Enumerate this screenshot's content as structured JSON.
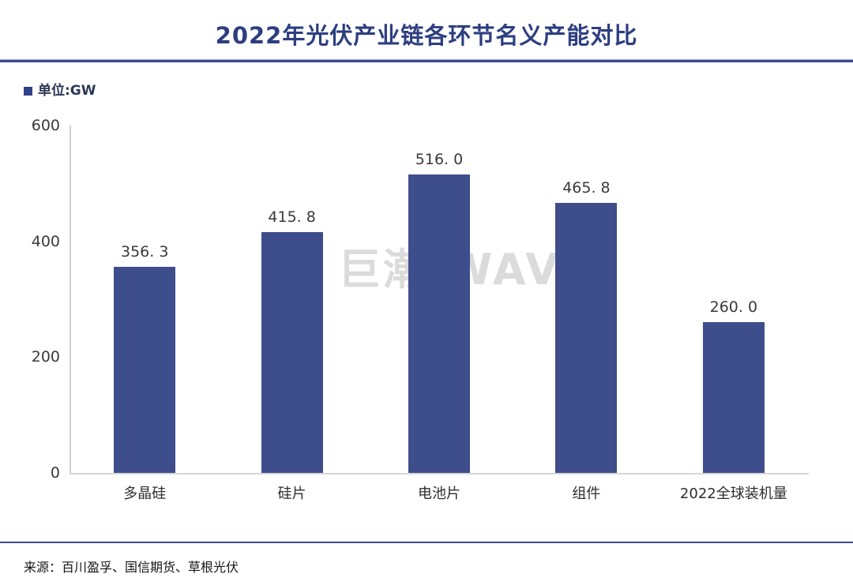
{
  "header": {
    "title": "2022年光伏产业链各环节名义产能对比"
  },
  "legend": {
    "unit_label": "单位:GW"
  },
  "watermark": {
    "text": "巨潮 WAVE"
  },
  "footer": {
    "source": "来源：百川盈孚、国信期货、草根光伏"
  },
  "colors": {
    "bar": "#3e4d8c",
    "title": "#2d3e80",
    "divider": "#3f4c96",
    "watermark": "#dbdbdb",
    "axis_line": "#d4d4d4",
    "tick_text": "#3a3a3a"
  },
  "chart_data": {
    "type": "bar",
    "title": "2022年光伏产业链各环节名义产能对比",
    "unit": "GW",
    "categories": [
      "多晶硅",
      "硅片",
      "电池片",
      "组件",
      "2022全球装机量"
    ],
    "values": [
      356.3,
      415.8,
      516.0,
      465.8,
      260.0
    ],
    "value_labels": [
      "356. 3",
      "415. 8",
      "516. 0",
      "465. 8",
      "260. 0"
    ],
    "series_name": "名义产能",
    "xlabel": "",
    "ylabel": "",
    "ylim": [
      0,
      600
    ],
    "yticks": [
      0,
      200,
      400,
      600
    ],
    "grid": false,
    "legend_position": "top-left",
    "bar_color": "#3e4d8c",
    "source": "来源：百川盈孚、国信期货、草根光伏"
  }
}
